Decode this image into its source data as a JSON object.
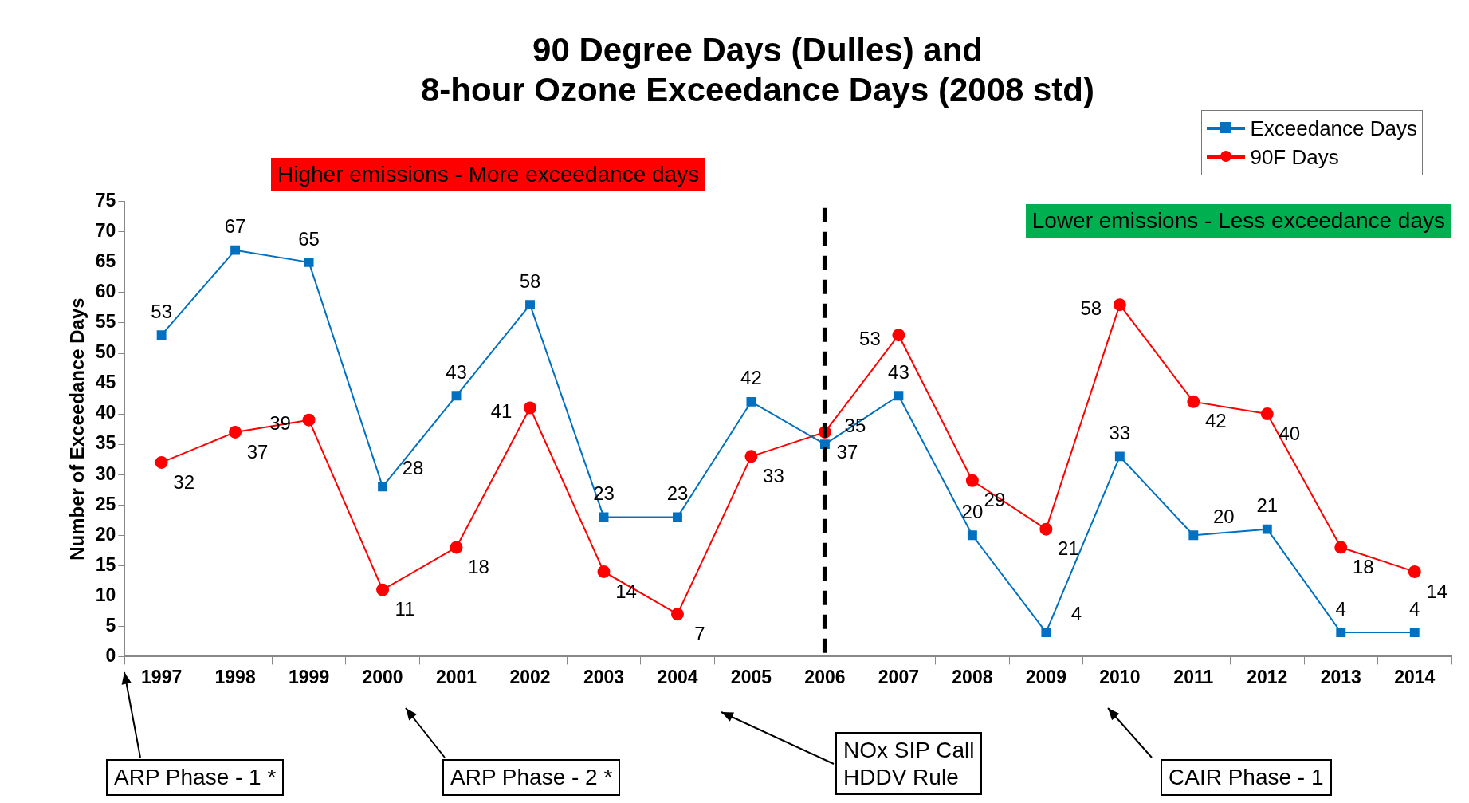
{
  "chart_data": {
    "type": "line",
    "title": "90 Degree Days (Dulles) and\n8-hour Ozone Exceedance Days (2008 std)",
    "ylabel": "Number of Exceedance Days",
    "categories": [
      "1997",
      "1998",
      "1999",
      "2000",
      "2001",
      "2002",
      "2003",
      "2004",
      "2005",
      "2006",
      "2007",
      "2008",
      "2009",
      "2010",
      "2011",
      "2012",
      "2013",
      "2014"
    ],
    "series": [
      {
        "name": "Exceedance Days",
        "color": "#0070c0",
        "marker": "square",
        "values": [
          53,
          67,
          65,
          28,
          43,
          58,
          23,
          23,
          42,
          35,
          43,
          20,
          4,
          33,
          20,
          21,
          4,
          4
        ]
      },
      {
        "name": "90F Days",
        "color": "#ff0000",
        "marker": "circle",
        "values": [
          32,
          37,
          39,
          11,
          18,
          41,
          14,
          7,
          33,
          37,
          53,
          29,
          21,
          58,
          42,
          40,
          18,
          14
        ]
      }
    ],
    "ylim": [
      0,
      75
    ],
    "yticks": [
      0,
      5,
      10,
      15,
      20,
      25,
      30,
      35,
      40,
      45,
      50,
      55,
      60,
      65,
      70,
      75
    ],
    "legend": "top right",
    "data_labels": true,
    "ref_lines": [
      {
        "axis": "x",
        "value": "2006",
        "color": "#000000",
        "line_style": "dashed"
      }
    ],
    "annotations": [
      "Higher emissions - More exceedance days",
      "Lower emissions - Less exceedance days",
      "ARP Phase - 1 *",
      "ARP Phase - 2 *",
      "NOx SIP Call\nHDDV Rule",
      "CAIR Phase - 1"
    ]
  }
}
